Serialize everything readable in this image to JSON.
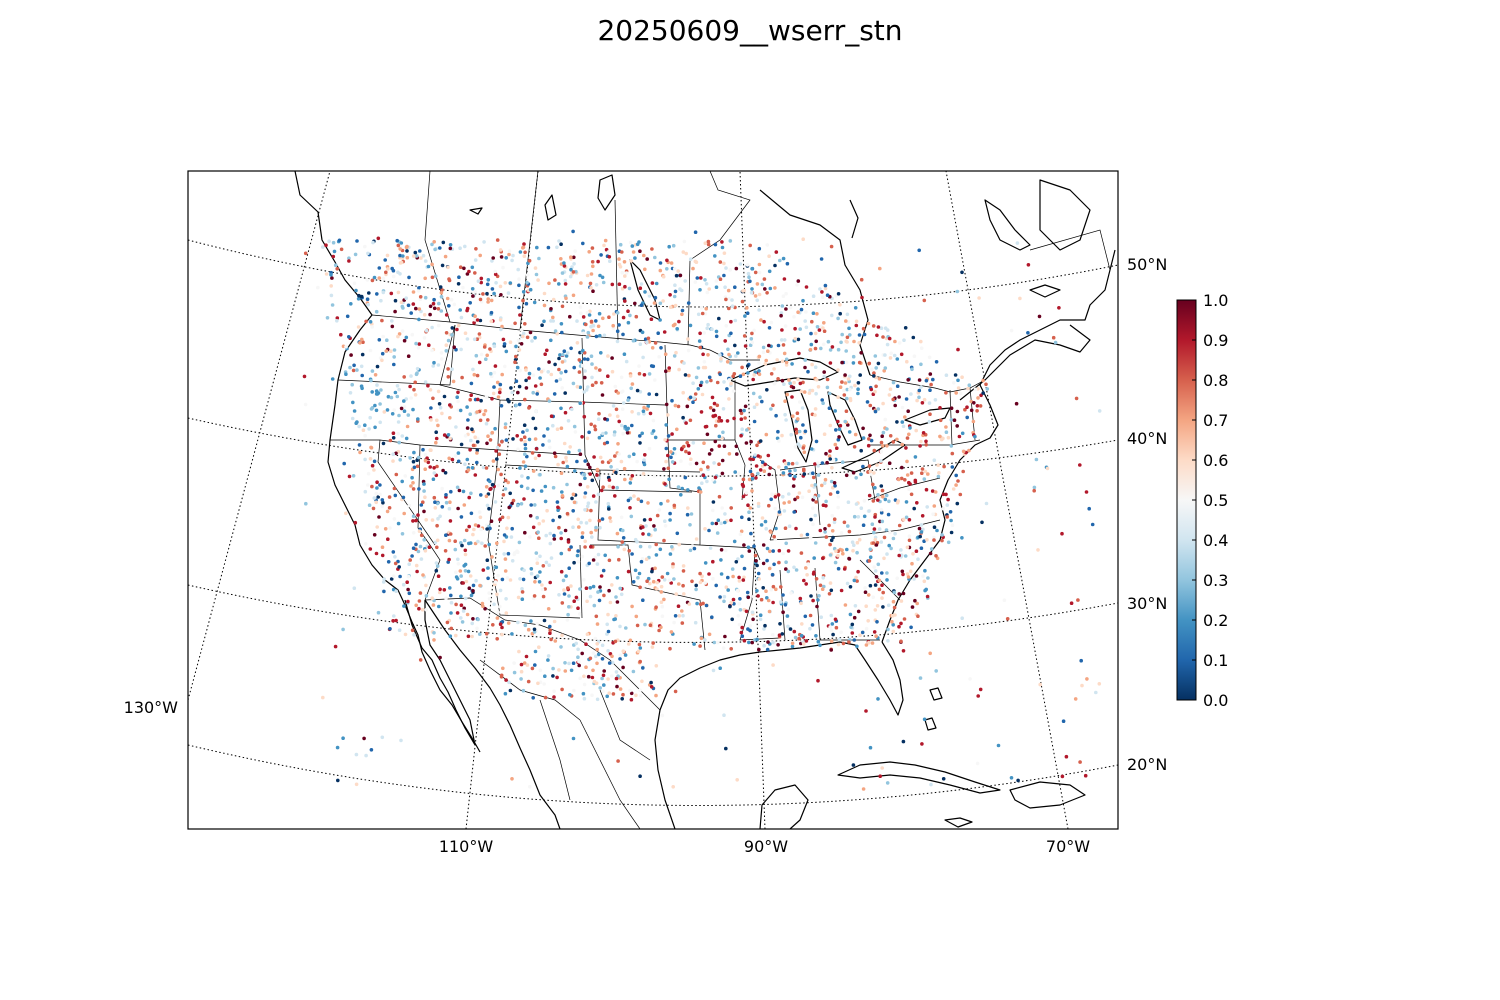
{
  "title": "20250609__wserr_stn",
  "map": {
    "type": "station scatter",
    "projection": "lambert conformal conic",
    "longitude_labels": [
      "130°W",
      "110°W",
      "90°W",
      "70°W"
    ],
    "latitude_labels": [
      "20°N",
      "30°N",
      "40°N",
      "50°N"
    ],
    "marker_color_scheme": "RdBu_r"
  },
  "colorbar": {
    "min": 0.0,
    "max": 1.0,
    "colors": [
      "#053061",
      "#2166ac",
      "#4393c3",
      "#92c5de",
      "#d1e5f0",
      "#f7f7f7",
      "#fddbc7",
      "#f4a582",
      "#d6604d",
      "#b2182b",
      "#67001f"
    ],
    "tick_labels": [
      "0.0",
      "0.1",
      "0.2",
      "0.3",
      "0.4",
      "0.5",
      "0.6",
      "0.7",
      "0.8",
      "0.9",
      "1.0"
    ]
  }
}
